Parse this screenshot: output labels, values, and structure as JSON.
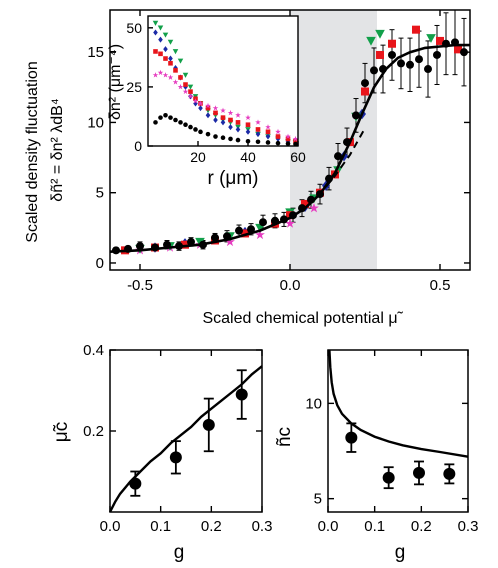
{
  "chart_data": [
    {
      "type": "scatter",
      "panel": "main",
      "xlabel": "Scaled chemical potential μ̃",
      "ylabel_line1": "Scaled density fluctuation",
      "ylabel_line2": "δñ² = δn² λdB⁴",
      "xlim": [
        -0.6,
        0.6
      ],
      "ylim": [
        -0.5,
        18
      ],
      "xticks": [
        -0.5,
        0.0,
        0.5
      ],
      "xtick_labels": [
        "-0.5",
        "0.0",
        "0.5"
      ],
      "yticks": [
        0,
        5,
        10,
        15
      ],
      "ytick_labels": [
        "0",
        "5",
        "10",
        "15"
      ],
      "shaded_region_x": [
        0.0,
        0.29
      ],
      "shaded_color": "#e3e4e6",
      "series": [
        {
          "color": "#000000",
          "marker": "circle",
          "error_bars": true,
          "x": [
            -0.58,
            -0.54,
            -0.5,
            -0.45,
            -0.41,
            -0.37,
            -0.33,
            -0.29,
            -0.25,
            -0.21,
            -0.17,
            -0.13,
            -0.09,
            -0.05,
            -0.02,
            0.01,
            0.04,
            0.07,
            0.1,
            0.13,
            0.16,
            0.19,
            0.22,
            0.25,
            0.28,
            0.31,
            0.34,
            0.37,
            0.4,
            0.43,
            0.46,
            0.49,
            0.52,
            0.55,
            0.58
          ],
          "y": [
            0.9,
            1.0,
            1.2,
            1.1,
            1.3,
            1.2,
            1.5,
            1.3,
            1.8,
            1.9,
            2.3,
            2.4,
            2.9,
            3.0,
            3.1,
            3.4,
            3.9,
            4.5,
            4.9,
            6.0,
            7.6,
            8.6,
            10.5,
            12.8,
            13.7,
            13.8,
            14.8,
            14.2,
            14.1,
            14.5,
            13.8,
            14.8,
            15.6,
            15.7,
            15.0
          ],
          "yerr": [
            0.2,
            0.2,
            0.3,
            0.2,
            0.3,
            0.3,
            0.3,
            0.3,
            0.3,
            0.4,
            0.4,
            0.4,
            0.5,
            0.5,
            0.5,
            0.5,
            0.6,
            0.6,
            0.7,
            0.8,
            0.9,
            1.0,
            1.2,
            1.4,
            1.6,
            1.7,
            1.8,
            1.8,
            1.9,
            2.0,
            2.0,
            2.1,
            2.2,
            2.3,
            2.4
          ]
        },
        {
          "color": "#e8151b",
          "marker": "square",
          "x": [
            -0.55,
            -0.45,
            -0.35,
            -0.25,
            -0.15,
            -0.05,
            0.0,
            0.05,
            0.1,
            0.15,
            0.2,
            0.25,
            0.3,
            0.34,
            0.42,
            0.5,
            0.56
          ],
          "y": [
            0.9,
            1.1,
            1.3,
            1.6,
            2.1,
            2.8,
            3.4,
            4.2,
            5.0,
            6.3,
            8.6,
            12.2,
            14.8,
            15.6,
            16.6,
            15.8,
            15.2
          ]
        },
        {
          "color": "#12a04a",
          "marker": "triangle-down",
          "x": [
            -0.5,
            -0.4,
            -0.3,
            -0.2,
            -0.1,
            0.0,
            0.08,
            0.16,
            0.22,
            0.27,
            0.3,
            0.47
          ],
          "y": [
            1.0,
            1.2,
            1.5,
            1.9,
            2.5,
            3.6,
            4.6,
            6.6,
            10.4,
            15.8,
            16.3,
            16.0
          ]
        },
        {
          "color": "#1c2aa6",
          "marker": "diamond",
          "x": [
            -0.45,
            -0.35,
            -0.25,
            -0.15,
            -0.05,
            0.05,
            0.12,
            0.18,
            0.24
          ],
          "y": [
            1.1,
            1.4,
            1.7,
            2.2,
            2.9,
            4.0,
            5.5,
            7.6,
            10.6
          ]
        },
        {
          "color": "#e63cc0",
          "marker": "star",
          "x": [
            -0.5,
            -0.4,
            -0.3,
            -0.2,
            -0.1,
            0.0,
            0.08
          ],
          "y": [
            0.9,
            1.1,
            1.3,
            1.5,
            2.0,
            2.8,
            3.9
          ]
        }
      ],
      "fit_curve": {
        "x": [
          -0.6,
          -0.5,
          -0.4,
          -0.3,
          -0.2,
          -0.1,
          0.0,
          0.05,
          0.1,
          0.15,
          0.2,
          0.24,
          0.28,
          0.32,
          0.36,
          0.4,
          0.45,
          0.5,
          0.55,
          0.6
        ],
        "y": [
          0.8,
          0.9,
          1.1,
          1.3,
          1.7,
          2.3,
          3.2,
          3.9,
          4.9,
          6.4,
          8.6,
          10.6,
          12.5,
          13.8,
          14.6,
          15.0,
          15.3,
          15.4,
          15.5,
          15.5
        ]
      },
      "dashed_curve": {
        "x": [
          0.0,
          0.05,
          0.1,
          0.15,
          0.2,
          0.25
        ],
        "y": [
          3.2,
          3.9,
          4.9,
          6.2,
          7.7,
          9.6
        ]
      }
    },
    {
      "type": "scatter",
      "panel": "inset",
      "xlabel": "r (μm)",
      "ylabel": "δn² (μm⁻⁴)",
      "xlim": [
        0,
        60
      ],
      "ylim": [
        0,
        55
      ],
      "xticks": [
        20,
        40,
        60
      ],
      "xtick_labels": [
        "20",
        "40",
        "60"
      ],
      "yticks": [
        0,
        25,
        50
      ],
      "ytick_labels": [
        "0",
        "25",
        "50"
      ],
      "series": [
        {
          "color": "#12a04a",
          "marker": "triangle-down",
          "x": [
            3,
            5,
            7,
            9,
            11,
            13,
            15,
            17,
            19,
            21,
            24,
            27,
            30,
            33,
            36,
            40,
            44,
            48,
            52,
            56,
            59
          ],
          "y": [
            52,
            50,
            47,
            44,
            40,
            36,
            30,
            25,
            21,
            18,
            15,
            13,
            11,
            10,
            8,
            7,
            5,
            4,
            3,
            2,
            1.5
          ]
        },
        {
          "color": "#1c2aa6",
          "marker": "diamond",
          "x": [
            3,
            5,
            7,
            9,
            11,
            13,
            15,
            17,
            19,
            21,
            24,
            27,
            30,
            33,
            36,
            40,
            44,
            48,
            52,
            56,
            59
          ],
          "y": [
            48,
            45,
            41,
            37,
            33,
            29,
            25,
            21,
            18,
            16,
            13,
            11,
            10,
            8,
            7,
            6,
            5,
            4,
            3,
            2,
            1.5
          ]
        },
        {
          "color": "#e8151b",
          "marker": "square",
          "x": [
            3,
            5,
            7,
            9,
            11,
            13,
            15,
            17,
            19,
            21,
            24,
            27,
            30,
            33,
            36,
            40,
            44,
            48,
            52,
            56,
            59
          ],
          "y": [
            40,
            39,
            37,
            35,
            32,
            29,
            26,
            23,
            20,
            18,
            16,
            14,
            12,
            11,
            10,
            9,
            7,
            6,
            4,
            3,
            2
          ]
        },
        {
          "color": "#e63cc0",
          "marker": "star",
          "x": [
            3,
            5,
            7,
            9,
            11,
            13,
            15,
            17,
            19,
            21,
            24,
            27,
            30,
            33,
            36,
            40,
            44,
            48,
            52,
            56,
            59
          ],
          "y": [
            30,
            31,
            30,
            29,
            27,
            25,
            23,
            21,
            19,
            18,
            17,
            16,
            15,
            14,
            13,
            12,
            10,
            8,
            6,
            4,
            3
          ]
        },
        {
          "color": "#000000",
          "marker": "circle",
          "x": [
            3,
            5,
            7,
            9,
            11,
            13,
            15,
            17,
            19,
            21,
            24,
            27,
            30,
            33,
            36,
            40,
            44,
            48,
            52,
            56,
            59
          ],
          "y": [
            10,
            12,
            13,
            12,
            11,
            10,
            9,
            8,
            7,
            6,
            5,
            4,
            3.5,
            3,
            2.5,
            2,
            1.8,
            1.5,
            1.2,
            1,
            0.8
          ]
        }
      ]
    },
    {
      "type": "scatter",
      "panel": "bottom-left",
      "xlabel": "g",
      "ylabel": "μ̃c",
      "xlim": [
        0.0,
        0.3
      ],
      "ylim": [
        0.0,
        0.4
      ],
      "xticks": [
        0.0,
        0.1,
        0.2,
        0.3
      ],
      "xtick_labels": [
        "0.0",
        "0.1",
        "0.2",
        "0.3"
      ],
      "yticks": [
        0.2,
        0.4
      ],
      "ytick_labels": [
        "0.2",
        "0.4"
      ],
      "points": {
        "x": [
          0.05,
          0.13,
          0.195,
          0.26
        ],
        "y": [
          0.07,
          0.135,
          0.215,
          0.29
        ],
        "yerr": [
          0.03,
          0.04,
          0.065,
          0.06
        ]
      },
      "curve": {
        "x": [
          0.0,
          0.01,
          0.02,
          0.04,
          0.06,
          0.08,
          0.1,
          0.12,
          0.14,
          0.16,
          0.18,
          0.2,
          0.22,
          0.24,
          0.26,
          0.28,
          0.3
        ],
        "y": [
          0.0,
          0.025,
          0.045,
          0.075,
          0.1,
          0.125,
          0.145,
          0.17,
          0.19,
          0.21,
          0.235,
          0.255,
          0.275,
          0.295,
          0.315,
          0.34,
          0.36
        ]
      }
    },
    {
      "type": "scatter",
      "panel": "bottom-right",
      "xlabel": "g",
      "ylabel": "ñc",
      "xlim": [
        0.0,
        0.3
      ],
      "ylim": [
        4.3,
        12.8
      ],
      "xticks": [
        0.0,
        0.1,
        0.2,
        0.3
      ],
      "xtick_labels": [
        "0.0",
        "0.1",
        "0.2",
        "0.3"
      ],
      "yticks": [
        5,
        10
      ],
      "ytick_labels": [
        "5",
        "10"
      ],
      "points": {
        "x": [
          0.05,
          0.13,
          0.195,
          0.26
        ],
        "y": [
          8.2,
          6.1,
          6.35,
          6.3
        ],
        "yerr": [
          0.75,
          0.55,
          0.6,
          0.5
        ]
      },
      "curve": {
        "x": [
          0.003,
          0.005,
          0.008,
          0.012,
          0.02,
          0.03,
          0.05,
          0.07,
          0.1,
          0.13,
          0.16,
          0.2,
          0.24,
          0.3
        ],
        "y": [
          12.8,
          11.9,
          11.1,
          10.5,
          9.9,
          9.45,
          8.95,
          8.6,
          8.25,
          8.0,
          7.8,
          7.6,
          7.45,
          7.2
        ]
      }
    }
  ]
}
